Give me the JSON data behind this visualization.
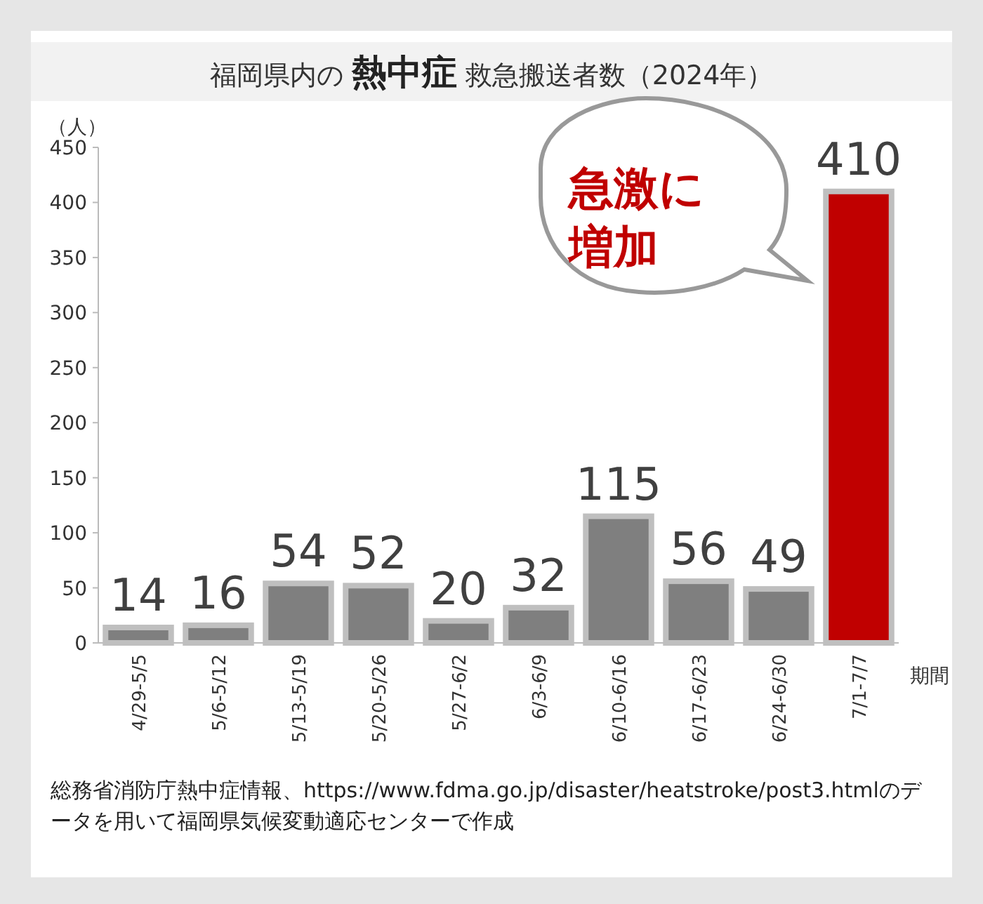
{
  "chart_data": {
    "type": "bar",
    "title": "福岡県内の **熱中症** 救急搬送者数（2024年）",
    "ylabel": "（人）",
    "xlabel": "期間",
    "categories": [
      "4/29-5/5",
      "5/6-5/12",
      "5/13-5/19",
      "5/20-5/26",
      "5/27-6/2",
      "6/3-6/9",
      "6/10-6/16",
      "6/17-6/23",
      "6/24-6/30",
      "7/1-7/7"
    ],
    "values": [
      14,
      16,
      54,
      52,
      20,
      32,
      115,
      56,
      49,
      410
    ],
    "colors": [
      "#7f7f7f",
      "#7f7f7f",
      "#7f7f7f",
      "#7f7f7f",
      "#7f7f7f",
      "#7f7f7f",
      "#7f7f7f",
      "#7f7f7f",
      "#7f7f7f",
      "#c00000"
    ],
    "data_labels": true,
    "ylim": [
      0,
      450
    ],
    "yticks": [
      0,
      50,
      100,
      150,
      200,
      250,
      300,
      350,
      400,
      450
    ],
    "grid": false,
    "annotations": [
      "急激に増加",
      "総務省消防庁熱中症情報、https://www.fdma.go.jp/disaster/heatstroke/post3.htmlのデータを用いて福岡県気候変動適応センターで作成"
    ]
  }
}
